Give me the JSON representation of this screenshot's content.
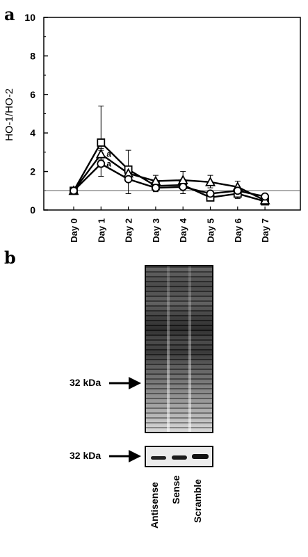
{
  "panel_a": {
    "letter": "a"
  },
  "panel_b": {
    "letter": "b",
    "marker_label_top": "32 kDa",
    "marker_label_bottom": "32 kDa",
    "lanes": [
      "Antisense",
      "Sense",
      "Scramble"
    ]
  },
  "chart_data": {
    "type": "line",
    "xlabel": "",
    "ylabel": "HO-1/HO-2",
    "ylim": [
      0,
      10
    ],
    "yticks": [
      0,
      2,
      4,
      6,
      8,
      10
    ],
    "categories": [
      "Day 0",
      "Day 1",
      "Day 2",
      "Day 3",
      "Day 4",
      "Day 5",
      "Day 6",
      "Day 7"
    ],
    "reference_line": 1,
    "series": [
      {
        "marker": "square",
        "values": [
          1.0,
          3.5,
          2.1,
          1.25,
          1.3,
          0.65,
          0.85,
          0.45
        ],
        "err_up": [
          0,
          1.9,
          1.0,
          0.2,
          0.3,
          0.15,
          0.25,
          0.1
        ],
        "err_down": [
          0,
          0.4,
          0.3,
          0.15,
          0.2,
          0.1,
          0.2,
          0.1
        ]
      },
      {
        "marker": "triangle",
        "values": [
          1.0,
          2.9,
          1.9,
          1.5,
          1.55,
          1.45,
          1.2,
          0.5
        ],
        "err_up": [
          0,
          0.3,
          0.3,
          0.3,
          0.45,
          0.35,
          0.3,
          0.1
        ],
        "err_down": [
          0,
          0.3,
          0.3,
          0.3,
          0.4,
          0.3,
          0.2,
          0.1
        ]
      },
      {
        "marker": "circle",
        "values": [
          1.0,
          2.4,
          1.6,
          1.15,
          1.2,
          0.85,
          1.0,
          0.7
        ],
        "err_up": [
          0,
          0.3,
          0.3,
          0.2,
          0.2,
          0.15,
          0.2,
          0.1
        ],
        "err_down": [
          0,
          0.65,
          0.75,
          0.2,
          0.35,
          0.2,
          0.4,
          0.1
        ]
      }
    ],
    "annotations": [
      {
        "text": "a",
        "series": 1,
        "category": "Day 1"
      },
      {
        "text": "a",
        "series": 2,
        "category": "Day 1"
      }
    ]
  }
}
